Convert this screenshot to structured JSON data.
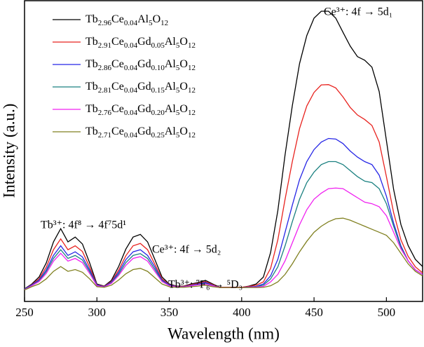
{
  "chart_data": {
    "type": "line",
    "xlabel": "Wavelength (nm)",
    "ylabel": "Intensity (a.u.)",
    "annotations": [
      "Tb³⁺: 4f⁸ → 4f⁷5d¹",
      "Ce³⁺: 4f → 5d₂",
      "Tb³⁺: ⁷F₆ → ⁵D₃",
      "Ce³⁺: 4f → 5d₁"
    ],
    "xlim": [
      250,
      525
    ],
    "xticks": [
      250,
      300,
      350,
      400,
      450,
      500
    ],
    "ylim": [
      0,
      100
    ],
    "legend": "upper-left",
    "x": [
      250,
      255,
      260,
      265,
      270,
      275,
      280,
      285,
      290,
      295,
      300,
      305,
      310,
      315,
      320,
      325,
      330,
      335,
      340,
      345,
      350,
      355,
      360,
      365,
      370,
      375,
      380,
      385,
      390,
      395,
      400,
      405,
      410,
      415,
      420,
      425,
      430,
      435,
      440,
      445,
      450,
      455,
      460,
      465,
      470,
      475,
      480,
      485,
      490,
      495,
      500,
      505,
      510,
      515,
      520,
      525
    ],
    "series": [
      {
        "name": "Tb2.96Ce0.04Al5O12",
        "color": "#000000",
        "values": [
          4.2,
          5.8,
          8.1,
          12.8,
          19.8,
          24.2,
          19.8,
          21.4,
          19.1,
          12.8,
          5.8,
          5.1,
          7.0,
          11.6,
          17.4,
          21.4,
          22.3,
          19.8,
          14.0,
          8.1,
          5.8,
          5.1,
          5.1,
          5.8,
          6.3,
          7.0,
          5.8,
          4.7,
          4.7,
          4.7,
          4.7,
          5.1,
          5.8,
          8.1,
          16.3,
          30.2,
          48.8,
          65.1,
          79.1,
          88.4,
          94.2,
          96.5,
          96.5,
          94.2,
          89.5,
          84.9,
          81.4,
          80.2,
          77.9,
          69.8,
          53.5,
          37.2,
          25.6,
          18.6,
          14.0,
          11.6
        ]
      },
      {
        "name": "Tb2.91Ce0.04Gd0.05Al5O12",
        "color": "#e8231f",
        "values": [
          4.1,
          5.6,
          7.5,
          11.4,
          17.2,
          20.8,
          17.2,
          18.5,
          16.6,
          11.4,
          5.6,
          5.0,
          6.6,
          10.4,
          15.2,
          18.5,
          19.3,
          17.2,
          12.4,
          7.5,
          5.6,
          5.0,
          5.0,
          5.6,
          6.0,
          6.6,
          5.6,
          4.7,
          4.7,
          4.7,
          4.7,
          5.0,
          5.4,
          6.5,
          11.0,
          20.5,
          34.0,
          46.5,
          57.5,
          65.0,
          69.5,
          72.0,
          72.1,
          71.0,
          68.0,
          64.5,
          62.0,
          60.5,
          58.5,
          53.0,
          41.5,
          29.5,
          20.5,
          15.0,
          11.5,
          9.5
        ]
      },
      {
        "name": "Tb2.86Ce0.04Gd0.10Al5O12",
        "color": "#2626e6",
        "values": [
          4.1,
          5.5,
          7.1,
          10.5,
          15.3,
          18.5,
          15.3,
          16.5,
          14.8,
          10.5,
          5.5,
          4.9,
          6.4,
          9.7,
          13.9,
          16.5,
          17.2,
          15.3,
          11.5,
          7.1,
          5.5,
          4.9,
          4.9,
          5.4,
          5.8,
          6.3,
          5.4,
          4.6,
          4.6,
          4.6,
          4.6,
          4.8,
          5.0,
          5.8,
          8.5,
          14.0,
          23.0,
          32.0,
          40.5,
          46.5,
          50.5,
          53.0,
          54.2,
          54.0,
          52.5,
          50.0,
          48.0,
          46.5,
          45.5,
          42.0,
          35.0,
          26.0,
          18.5,
          13.5,
          10.5,
          9.0
        ]
      },
      {
        "name": "Tb2.81Ce0.04Gd0.15Al5O12",
        "color": "#1a8080",
        "values": [
          4.0,
          5.3,
          6.8,
          9.9,
          14.3,
          17.2,
          14.3,
          15.3,
          13.8,
          9.9,
          5.3,
          4.8,
          6.2,
          9.1,
          12.9,
          15.3,
          15.9,
          14.3,
          10.7,
          6.8,
          5.3,
          4.8,
          4.8,
          5.3,
          5.6,
          6.0,
          5.3,
          4.6,
          4.6,
          4.6,
          4.6,
          4.7,
          4.9,
          5.4,
          7.5,
          11.5,
          18.5,
          26.5,
          34.0,
          39.5,
          43.0,
          45.5,
          46.5,
          46.5,
          45.5,
          43.5,
          41.5,
          40.0,
          39.5,
          37.5,
          32.5,
          25.0,
          18.0,
          13.5,
          10.5,
          9.0
        ]
      },
      {
        "name": "Tb2.76Ce0.04Gd0.20Al5O12",
        "color": "#f020f0",
        "values": [
          3.9,
          5.2,
          6.6,
          9.3,
          13.4,
          16.0,
          13.4,
          14.3,
          12.9,
          9.3,
          5.2,
          4.8,
          6.0,
          8.6,
          12.0,
          14.3,
          14.9,
          13.4,
          10.0,
          6.6,
          5.2,
          4.8,
          4.8,
          5.2,
          5.5,
          5.8,
          5.2,
          4.6,
          4.6,
          4.6,
          4.6,
          4.7,
          4.8,
          5.0,
          6.5,
          9.0,
          13.5,
          19.5,
          25.5,
          30.5,
          34.0,
          36.0,
          37.5,
          37.7,
          37.5,
          36.0,
          34.5,
          33.0,
          32.5,
          31.5,
          28.5,
          23.0,
          17.5,
          13.5,
          10.5,
          9.0
        ]
      },
      {
        "name": "Tb2.71Ce0.04Gd0.25Al5O12",
        "color": "#808020",
        "values": [
          3.8,
          4.9,
          5.8,
          7.5,
          10.0,
          11.6,
          10.0,
          10.6,
          9.7,
          7.5,
          4.9,
          4.7,
          5.4,
          7.1,
          9.2,
          10.6,
          11.0,
          10.0,
          7.9,
          5.8,
          4.9,
          4.7,
          4.7,
          4.9,
          5.1,
          5.4,
          4.9,
          4.6,
          4.6,
          4.6,
          4.6,
          4.6,
          4.6,
          4.7,
          5.2,
          6.5,
          9.0,
          12.5,
          16.5,
          20.0,
          23.0,
          25.0,
          26.5,
          27.5,
          27.7,
          27.0,
          26.0,
          25.0,
          24.0,
          23.0,
          22.0,
          19.5,
          16.0,
          12.5,
          10.0,
          8.5
        ]
      }
    ]
  }
}
